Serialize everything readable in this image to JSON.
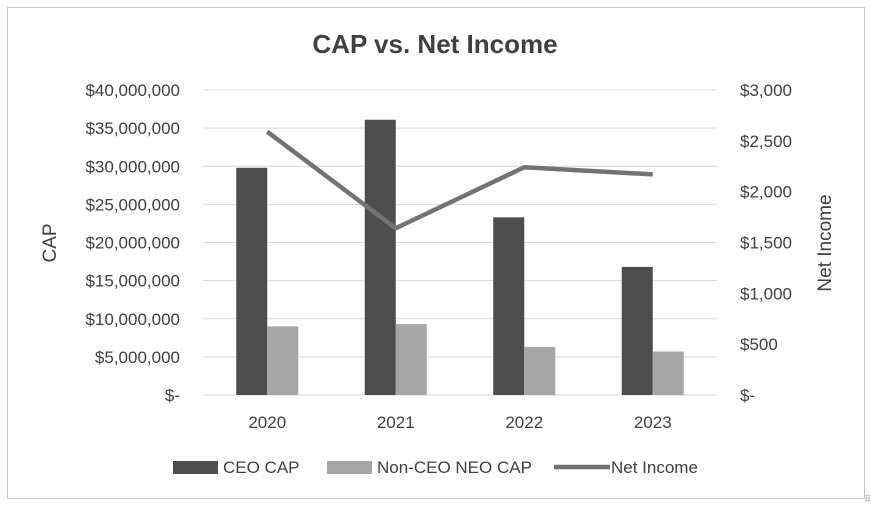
{
  "chart_data": {
    "type": "bar",
    "title": "CAP vs. Net Income",
    "categories": [
      "2020",
      "2021",
      "2022",
      "2023"
    ],
    "ylabel": "CAP",
    "y2label": "Net Income",
    "ylim": [
      0,
      40000000
    ],
    "y2lim": [
      0,
      3000
    ],
    "yticks": [
      "$-",
      "$5,000,000",
      "$10,000,000",
      "$15,000,000",
      "$20,000,000",
      "$25,000,000",
      "$30,000,000",
      "$35,000,000",
      "$40,000,000"
    ],
    "y2ticks": [
      "$-",
      "$500",
      "$1,000",
      "$1,500",
      "$2,000",
      "$2,500",
      "$3,000"
    ],
    "series": [
      {
        "name": "CEO CAP",
        "type": "bar",
        "axis": "left",
        "color": "#4d4d4d",
        "values": [
          29800000,
          36100000,
          23300000,
          16800000
        ]
      },
      {
        "name": "Non-CEO NEO CAP",
        "type": "bar",
        "axis": "left",
        "color": "#a6a6a6",
        "values": [
          9000000,
          9300000,
          6300000,
          5700000
        ]
      },
      {
        "name": "Net Income",
        "type": "line",
        "axis": "right",
        "color": "#737373",
        "values": [
          2590,
          1640,
          2240,
          2170
        ]
      }
    ],
    "grid": true,
    "legend": "bottom"
  }
}
